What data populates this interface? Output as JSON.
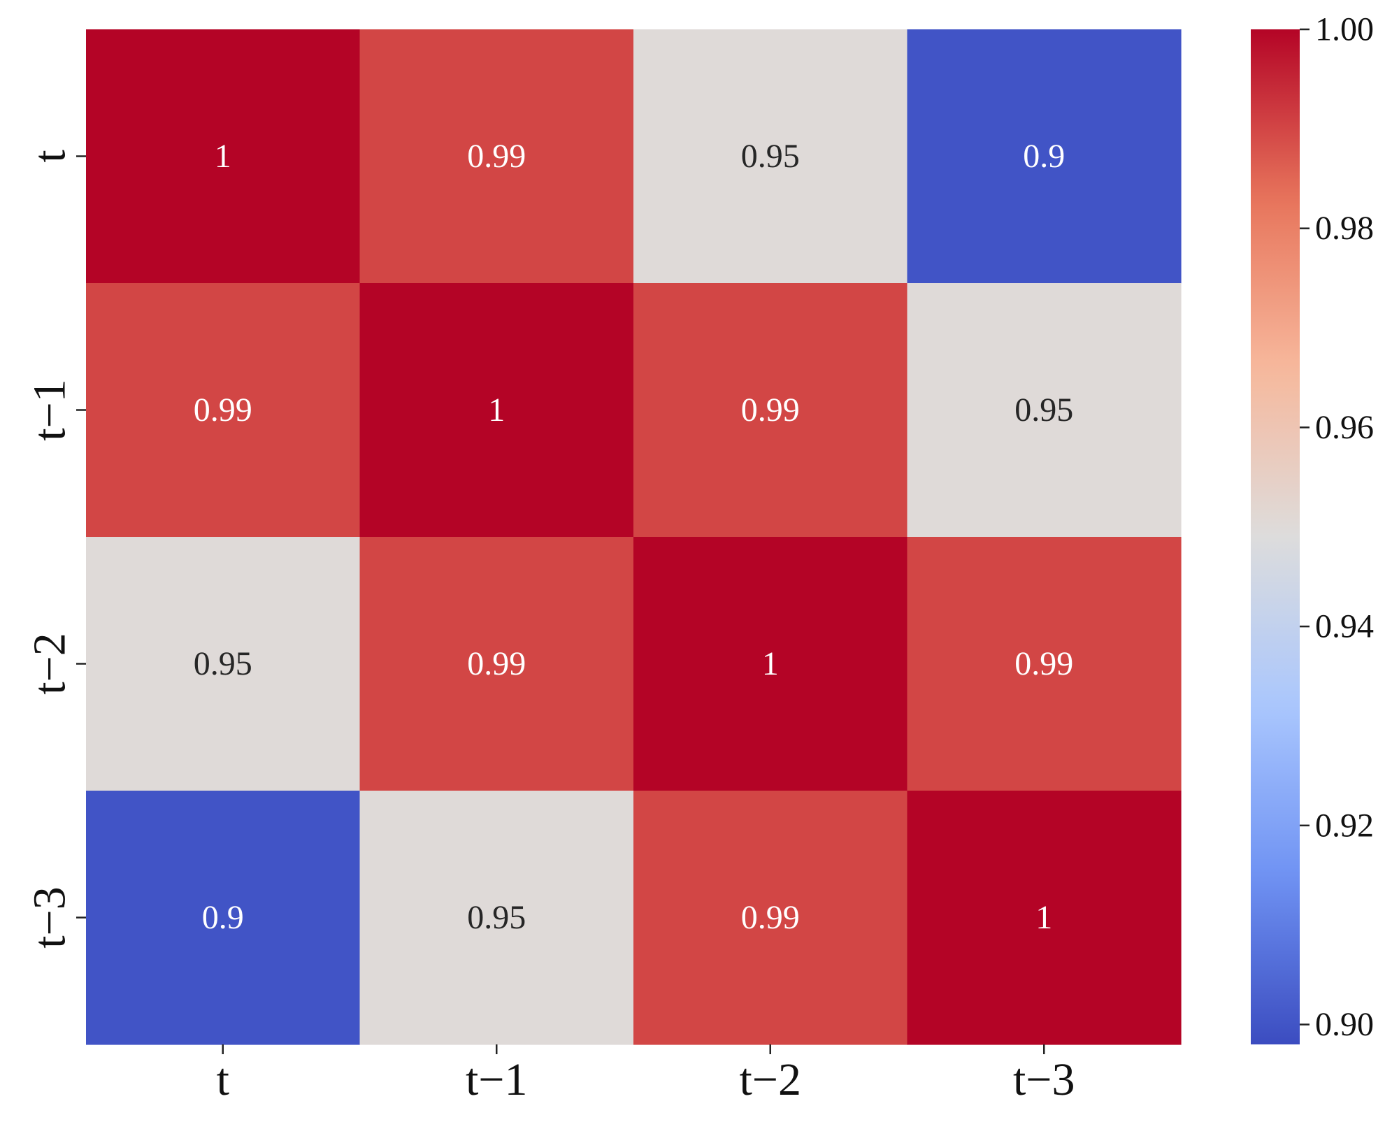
{
  "chart_data": {
    "type": "heatmap",
    "title": "",
    "xlabel": "",
    "ylabel": "",
    "x_categories": [
      "t",
      "t−1",
      "t−2",
      "t−3"
    ],
    "y_categories": [
      "t",
      "t−1",
      "t−2",
      "t−3"
    ],
    "values": [
      [
        1.0,
        0.99,
        0.95,
        0.9
      ],
      [
        0.99,
        1.0,
        0.99,
        0.95
      ],
      [
        0.95,
        0.99,
        1.0,
        0.99
      ],
      [
        0.9,
        0.95,
        0.99,
        1.0
      ]
    ],
    "annotations": [
      [
        "1",
        "0.99",
        "0.95",
        "0.9"
      ],
      [
        "0.99",
        "1",
        "0.99",
        "0.95"
      ],
      [
        "0.95",
        "0.99",
        "1",
        "0.99"
      ],
      [
        "0.9",
        "0.95",
        "0.99",
        "1"
      ]
    ],
    "colorbar": {
      "min": 0.898,
      "max": 1.0,
      "ticks": [
        0.9,
        0.92,
        0.94,
        0.96,
        0.98,
        1.0
      ],
      "tick_labels": [
        "0.90",
        "0.92",
        "0.94",
        "0.96",
        "0.98",
        "1.00"
      ],
      "placement": "right"
    },
    "colormap": "coolwarm",
    "colormap_stops": [
      "#3b4cc0",
      "#6f92f3",
      "#aac7fd",
      "#dddcdc",
      "#f7b89c",
      "#e7745b",
      "#b40426"
    ],
    "annotation_text_colors": {
      "light": "#ffffff",
      "dark": "#262626"
    }
  }
}
